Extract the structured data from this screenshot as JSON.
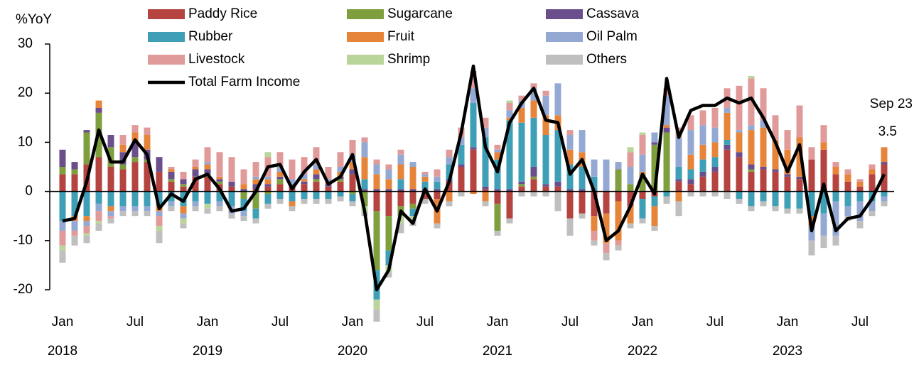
{
  "chart_data": {
    "type": "bar",
    "y_label": "%YoY",
    "categories": [
      "Jan",
      null,
      null,
      null,
      null,
      null,
      "Jul",
      null,
      null,
      null,
      null,
      null,
      "Jan",
      null,
      null,
      null,
      null,
      null,
      "Jul",
      null,
      null,
      null,
      null,
      null,
      "Jan",
      null,
      null,
      null,
      null,
      null,
      "Jul",
      null,
      null,
      null,
      null,
      null,
      "Jan",
      null,
      null,
      null,
      null,
      null,
      "Jul",
      null,
      null,
      null,
      null,
      null,
      "Jan",
      null,
      null,
      null,
      null,
      null,
      "Jul",
      null,
      null,
      null,
      null,
      null,
      "Jan",
      null,
      null,
      null,
      null,
      null,
      "Jul",
      null,
      null
    ],
    "year_labels": [
      "2018",
      "2019",
      "2020",
      "2021",
      "2022",
      "2023"
    ],
    "ylim": [
      -20,
      30
    ],
    "yticks": [
      -20,
      -10,
      0,
      10,
      20,
      30
    ],
    "annotation": "Sep 23",
    "series": [
      {
        "name": "Paddy Rice",
        "color": "#b5433f",
        "values": [
          3.5,
          3.5,
          5.5,
          7,
          5,
          4.5,
          6,
          6,
          4,
          2,
          1,
          3,
          3,
          1.5,
          1,
          0,
          0.5,
          1,
          1.5,
          1,
          1.5,
          2,
          1,
          2,
          3.5,
          0,
          -4,
          -5,
          -3,
          -2.5,
          -1.5,
          -1.5,
          2,
          5,
          8.5,
          0.5,
          -2.5,
          -5.5,
          1,
          2.5,
          1,
          1,
          -5.5,
          -4.5,
          -5,
          -4.5,
          -2,
          -3,
          -1.5,
          -1,
          0,
          2,
          1.5,
          3,
          4,
          8.5,
          7,
          4,
          4.5,
          4,
          3,
          2.5,
          6.5,
          8.5,
          3.5,
          2,
          1,
          3.5,
          5.5
        ]
      },
      {
        "name": "Sugarcane",
        "color": "#7f9e3d",
        "values": [
          1.5,
          1,
          6.5,
          9,
          4,
          1,
          1,
          0.5,
          0,
          0.5,
          0.5,
          0,
          0.5,
          0.5,
          0,
          -1.5,
          -3.5,
          -0.5,
          1,
          0,
          0,
          0.5,
          0,
          0.5,
          -0.5,
          -3,
          -12,
          -7,
          -2,
          -1,
          0,
          0,
          0,
          0,
          0,
          0,
          -5.5,
          0,
          0.5,
          0.5,
          0,
          0,
          0,
          0,
          0,
          0,
          4.5,
          1.5,
          3.5,
          9.5,
          12,
          0,
          0,
          0,
          0,
          0,
          0,
          0.5,
          0,
          0,
          0,
          0,
          0,
          0,
          0,
          0,
          0,
          0,
          0
        ]
      },
      {
        "name": "Cassava",
        "color": "#6a4f8c",
        "values": [
          3.5,
          1.5,
          0.5,
          1,
          2.5,
          2.5,
          3,
          2,
          3,
          1.5,
          1,
          1.5,
          1,
          0.5,
          1,
          0.5,
          1,
          0.5,
          0.5,
          0.5,
          0.5,
          1,
          0.5,
          0.5,
          1,
          0.5,
          0.5,
          0.5,
          0.5,
          0.5,
          0.5,
          0.5,
          0.5,
          0.5,
          0.5,
          0.5,
          0.5,
          0.5,
          0.5,
          2,
          0.5,
          1,
          0.5,
          0.5,
          0,
          0,
          0,
          0,
          0,
          0.5,
          1,
          0.5,
          1,
          1,
          1,
          1,
          1,
          1,
          0.5,
          0.5,
          0.5,
          0.5,
          0,
          0,
          0,
          0,
          0,
          0,
          0.5
        ]
      },
      {
        "name": "Rubber",
        "color": "#3e9fb6",
        "values": [
          -6,
          -5,
          -5,
          -2.5,
          -3,
          -3,
          -3,
          -3,
          -3,
          -2,
          -3,
          -2,
          -2.5,
          -2,
          -3,
          -2.5,
          -2,
          -2,
          -1.5,
          -2,
          -1.5,
          -1.5,
          -1.5,
          -1,
          -1.5,
          2,
          -6,
          -3,
          2,
          -1.5,
          1.5,
          1.5,
          3,
          4,
          9,
          10,
          6,
          14,
          12,
          10,
          10,
          10.5,
          5,
          4.5,
          3,
          0,
          0,
          0,
          -4,
          -2,
          -1,
          2.5,
          2,
          2.5,
          2,
          1,
          -1.5,
          -3,
          -2,
          -3,
          -3.5,
          -3.5,
          -5,
          -4.5,
          -2,
          -3,
          -2,
          -2,
          -1
        ]
      },
      {
        "name": "Fruit",
        "color": "#e6843a",
        "values": [
          0,
          -1,
          -1,
          1.5,
          -1,
          1.5,
          2,
          3,
          -1,
          0.5,
          -1.5,
          0.5,
          1,
          0.5,
          0,
          1,
          1,
          1,
          1,
          -1,
          0.5,
          1,
          0.5,
          1,
          1.5,
          4.5,
          3,
          2,
          3,
          4.5,
          1,
          -5,
          -2,
          0,
          -0.5,
          -2,
          1.5,
          0.5,
          3,
          3.5,
          4,
          3,
          3,
          3,
          -3,
          -6,
          -8,
          -3.5,
          0.5,
          -4,
          0.5,
          -2,
          3,
          3,
          3,
          5.5,
          4,
          7,
          8,
          6,
          5,
          8,
          -2,
          1.5,
          1.5,
          1.5,
          1,
          1,
          3
        ]
      },
      {
        "name": "Oil Palm",
        "color": "#93a9d3",
        "values": [
          -2,
          -2,
          -1,
          -1.5,
          -1,
          -1,
          -1,
          -1,
          -1,
          -1,
          -1,
          -1,
          0.5,
          -1,
          -1.5,
          -1,
          0.5,
          0.5,
          1,
          1,
          1,
          1,
          0.5,
          1,
          1.5,
          3,
          2,
          2,
          2,
          1,
          0.5,
          1,
          1.5,
          1.5,
          3,
          2,
          0.5,
          1.5,
          1.5,
          2.5,
          4,
          6.5,
          3,
          4.5,
          3.5,
          6.5,
          1.5,
          3.5,
          3.5,
          2,
          6,
          6,
          5,
          4,
          3,
          1,
          0.5,
          1,
          1.5,
          0,
          0,
          0,
          -3,
          -4.5,
          -7,
          -2,
          -4,
          -2,
          -1
        ]
      },
      {
        "name": "Livestock",
        "color": "#e09a9a",
        "values": [
          -3,
          -1,
          -1.5,
          -2,
          -0.5,
          2,
          1.5,
          1.5,
          -2,
          0.5,
          1.5,
          1.5,
          3,
          5,
          5,
          3,
          3,
          4,
          3,
          4,
          3.5,
          3.5,
          2.5,
          3,
          3,
          1,
          1,
          1,
          1,
          0,
          0.5,
          1.5,
          1.5,
          2,
          3.5,
          2,
          1,
          1.5,
          1,
          1,
          1,
          0,
          1,
          0,
          -2,
          -2,
          -1,
          3,
          4,
          0,
          1.5,
          2,
          3,
          3,
          4,
          4,
          9,
          9.5,
          6.5,
          5,
          4,
          6.5,
          2.5,
          3.5,
          1,
          1,
          0.5,
          1,
          0
        ]
      },
      {
        "name": "Shrimp",
        "color": "#b9d59a",
        "values": [
          -1,
          0,
          -0.5,
          -0.5,
          0,
          0,
          0,
          0,
          -1,
          0,
          -1,
          0,
          -1,
          0,
          0,
          0,
          0,
          1,
          0,
          0,
          0,
          0,
          0,
          0,
          0,
          -1,
          -2,
          -1.5,
          -1.5,
          -1,
          0,
          0,
          0,
          0,
          0,
          0,
          0,
          0.5,
          0,
          0,
          0,
          0,
          0,
          0,
          0,
          0,
          0,
          1,
          0.5,
          0,
          0,
          0,
          0,
          0,
          0,
          0,
          0,
          0.5,
          0,
          0,
          0,
          0,
          0,
          0,
          0,
          0,
          0,
          0,
          0
        ]
      },
      {
        "name": "Others",
        "color": "#bfbfbf",
        "values": [
          -2.5,
          -2,
          -1.5,
          -1.5,
          -1,
          -1,
          -1,
          -1,
          -2.5,
          -1,
          -1,
          -1,
          -1,
          -1,
          -1,
          -1,
          -1,
          -1,
          -1,
          -1,
          -1,
          -1,
          -1,
          -1,
          -1,
          -1,
          -2.5,
          -1,
          -2,
          -1,
          -1,
          -1,
          -1,
          -1,
          0,
          -1,
          -1,
          -1,
          -1,
          -1,
          -1,
          -4,
          -3.5,
          -1,
          -1,
          -1.5,
          -1,
          -1,
          -1,
          -1,
          -1.5,
          -3,
          -1,
          -1,
          -1,
          -1.5,
          -1,
          -1,
          -1,
          -1,
          -1,
          -1,
          -3,
          -2.5,
          -2,
          -1,
          -1.5,
          -1,
          -1
        ]
      },
      {
        "name": "Total Farm Income",
        "color": "#000000",
        "type": "line",
        "values": [
          -6,
          -5.5,
          2,
          12.5,
          6,
          6,
          10.5,
          7.5,
          -3.5,
          -0.5,
          -2,
          2.5,
          3.5,
          0.5,
          -4,
          -3.5,
          0,
          5,
          5.5,
          0.5,
          4,
          6.5,
          1.5,
          3,
          7.5,
          -4,
          -20,
          -16,
          -4,
          -6.5,
          0.5,
          -4,
          2,
          12,
          25.5,
          9,
          4,
          14,
          18,
          21,
          14.5,
          14,
          3.5,
          6.5,
          0,
          -10,
          -8,
          -3,
          3.5,
          -0.5,
          23,
          11,
          16.5,
          17.5,
          17.5,
          19,
          18,
          19,
          15,
          10,
          4,
          9.5,
          -8,
          1.5,
          -8,
          -5.5,
          -5,
          -1.5,
          3.5
        ]
      }
    ]
  }
}
